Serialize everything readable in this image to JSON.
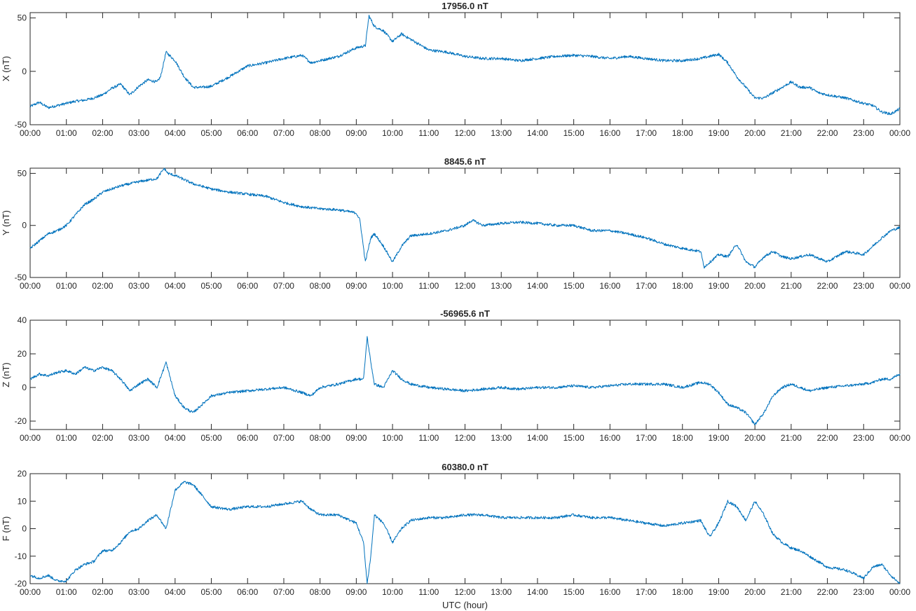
{
  "chart_data": [
    {
      "type": "line",
      "title": "17956.0 nT",
      "ylabel": "X (nT)",
      "xlabel": "",
      "x_ticks": [
        "00:00",
        "01:00",
        "02:00",
        "03:00",
        "04:00",
        "05:00",
        "06:00",
        "07:00",
        "08:00",
        "09:00",
        "10:00",
        "11:00",
        "12:00",
        "13:00",
        "14:00",
        "15:00",
        "16:00",
        "17:00",
        "18:00",
        "19:00",
        "20:00",
        "21:00",
        "22:00",
        "23:00",
        "00:00"
      ],
      "xlim": [
        0,
        24
      ],
      "ylim": [
        -50,
        55
      ],
      "y_ticks": [
        -50,
        0,
        50
      ],
      "grid": false,
      "line_color": "#0072bd",
      "series": [
        {
          "x": [
            0,
            0.25,
            0.5,
            0.75,
            1,
            1.25,
            1.5,
            1.75,
            2,
            2.25,
            2.5,
            2.75,
            3,
            3.25,
            3.5,
            3.6,
            3.75,
            4,
            4.25,
            4.5,
            4.75,
            5,
            5.5,
            6,
            6.5,
            7,
            7.5,
            7.75,
            8,
            8.5,
            8.75,
            9,
            9.25,
            9.35,
            9.5,
            9.75,
            10,
            10.25,
            10.5,
            11,
            11.5,
            12,
            12.5,
            13,
            13.5,
            14,
            14.5,
            15,
            15.5,
            16,
            16.5,
            17,
            17.5,
            18,
            18.5,
            18.75,
            19,
            19.25,
            19.5,
            19.75,
            20,
            20.25,
            20.5,
            20.75,
            21,
            21.25,
            21.5,
            21.75,
            22,
            22.5,
            23,
            23.25,
            23.5,
            23.75,
            24
          ],
          "values": [
            -33,
            -29,
            -34,
            -32,
            -30,
            -28,
            -27,
            -25,
            -22,
            -16,
            -12,
            -22,
            -14,
            -8,
            -10,
            -5,
            18,
            10,
            -5,
            -15,
            -15,
            -14,
            -5,
            5,
            8,
            12,
            15,
            8,
            10,
            14,
            18,
            22,
            24,
            52,
            42,
            38,
            28,
            35,
            30,
            20,
            18,
            14,
            12,
            12,
            10,
            12,
            14,
            15,
            14,
            12,
            14,
            12,
            10,
            10,
            12,
            14,
            16,
            8,
            -5,
            -15,
            -25,
            -25,
            -20,
            -15,
            -10,
            -15,
            -15,
            -20,
            -22,
            -25,
            -30,
            -32,
            -38,
            -40,
            -35
          ]
        }
      ]
    },
    {
      "type": "line",
      "title": "8845.6 nT",
      "ylabel": "Y (nT)",
      "xlabel": "",
      "x_ticks": [
        "00:00",
        "01:00",
        "02:00",
        "03:00",
        "04:00",
        "05:00",
        "06:00",
        "07:00",
        "08:00",
        "09:00",
        "10:00",
        "11:00",
        "12:00",
        "13:00",
        "14:00",
        "15:00",
        "16:00",
        "17:00",
        "18:00",
        "19:00",
        "20:00",
        "21:00",
        "22:00",
        "23:00",
        "00:00"
      ],
      "xlim": [
        0,
        24
      ],
      "ylim": [
        -50,
        55
      ],
      "y_ticks": [
        -50,
        0,
        50
      ],
      "grid": false,
      "line_color": "#0072bd",
      "series": [
        {
          "x": [
            0,
            0.25,
            0.5,
            0.75,
            1,
            1.25,
            1.5,
            1.75,
            2,
            2.5,
            3,
            3.5,
            3.7,
            3.8,
            4,
            4.5,
            5,
            5.5,
            6,
            6.5,
            7,
            7.5,
            8,
            8.5,
            9,
            9.1,
            9.25,
            9.4,
            9.5,
            9.75,
            10,
            10.25,
            10.5,
            11,
            11.5,
            12,
            12.2,
            12.5,
            13,
            13.5,
            14,
            14.5,
            15,
            15.5,
            16,
            16.5,
            17,
            17.5,
            18,
            18.5,
            18.6,
            19,
            19.25,
            19.5,
            19.75,
            20,
            20.25,
            20.5,
            20.75,
            21,
            21.5,
            22,
            22.5,
            23,
            23.25,
            23.5,
            23.75,
            24
          ],
          "values": [
            -22,
            -15,
            -8,
            -5,
            0,
            10,
            20,
            25,
            32,
            38,
            42,
            45,
            55,
            50,
            48,
            40,
            35,
            32,
            30,
            28,
            22,
            18,
            16,
            15,
            12,
            5,
            -35,
            -12,
            -8,
            -20,
            -35,
            -20,
            -10,
            -8,
            -5,
            0,
            5,
            0,
            2,
            3,
            2,
            0,
            0,
            -5,
            -5,
            -8,
            -12,
            -18,
            -22,
            -25,
            -40,
            -28,
            -30,
            -18,
            -35,
            -40,
            -30,
            -25,
            -30,
            -32,
            -28,
            -35,
            -25,
            -28,
            -20,
            -12,
            -5,
            -2
          ]
        }
      ]
    },
    {
      "type": "line",
      "title": "-56965.6 nT",
      "ylabel": "Z (nT)",
      "xlabel": "",
      "x_ticks": [
        "00:00",
        "01:00",
        "02:00",
        "03:00",
        "04:00",
        "05:00",
        "06:00",
        "07:00",
        "08:00",
        "09:00",
        "10:00",
        "11:00",
        "12:00",
        "13:00",
        "14:00",
        "15:00",
        "16:00",
        "17:00",
        "18:00",
        "19:00",
        "20:00",
        "21:00",
        "22:00",
        "23:00",
        "00:00"
      ],
      "xlim": [
        0,
        24
      ],
      "ylim": [
        -25,
        40
      ],
      "y_ticks": [
        -20,
        0,
        20,
        40
      ],
      "grid": false,
      "line_color": "#0072bd",
      "series": [
        {
          "x": [
            0,
            0.25,
            0.5,
            0.75,
            1,
            1.25,
            1.5,
            1.75,
            2,
            2.25,
            2.5,
            2.75,
            3,
            3.25,
            3.5,
            3.75,
            4,
            4.25,
            4.5,
            4.75,
            5,
            5.5,
            6,
            6.5,
            7,
            7.5,
            7.75,
            8,
            8.5,
            9,
            9.2,
            9.3,
            9.4,
            9.5,
            9.75,
            10,
            10.25,
            10.5,
            11,
            11.5,
            12,
            12.5,
            13,
            13.5,
            14,
            14.5,
            15,
            15.5,
            16,
            16.5,
            17,
            17.5,
            18,
            18.5,
            18.75,
            19,
            19.25,
            19.5,
            19.75,
            20,
            20.25,
            20.5,
            20.75,
            21,
            21.25,
            21.5,
            21.75,
            22,
            22.5,
            23,
            23.25,
            23.5,
            23.75,
            24
          ],
          "values": [
            5,
            8,
            7,
            9,
            10,
            8,
            12,
            10,
            12,
            10,
            5,
            -2,
            2,
            5,
            0,
            15,
            -5,
            -12,
            -15,
            -10,
            -5,
            -3,
            -2,
            -1,
            0,
            -3,
            -5,
            0,
            2,
            5,
            5,
            30,
            15,
            2,
            0,
            10,
            5,
            2,
            0,
            -1,
            -2,
            -1,
            0,
            -1,
            0,
            0,
            1,
            0,
            1,
            2,
            2,
            2,
            0,
            3,
            2,
            -3,
            -10,
            -12,
            -15,
            -22,
            -15,
            -5,
            0,
            2,
            0,
            -2,
            -1,
            0,
            1,
            2,
            3,
            5,
            5,
            8
          ]
        }
      ]
    },
    {
      "type": "line",
      "title": "60380.0 nT",
      "ylabel": "F (nT)",
      "xlabel": "UTC (hour)",
      "x_ticks": [
        "00:00",
        "01:00",
        "02:00",
        "03:00",
        "04:00",
        "05:00",
        "06:00",
        "07:00",
        "08:00",
        "09:00",
        "10:00",
        "11:00",
        "12:00",
        "13:00",
        "14:00",
        "15:00",
        "16:00",
        "17:00",
        "18:00",
        "19:00",
        "20:00",
        "21:00",
        "22:00",
        "23:00",
        "00:00"
      ],
      "xlim": [
        0,
        24
      ],
      "ylim": [
        -20,
        20
      ],
      "y_ticks": [
        -20,
        -10,
        0,
        10,
        20
      ],
      "grid": false,
      "line_color": "#0072bd",
      "series": [
        {
          "x": [
            0,
            0.25,
            0.5,
            0.75,
            1,
            1.25,
            1.5,
            1.75,
            2,
            2.25,
            2.5,
            2.75,
            3,
            3.25,
            3.5,
            3.75,
            4,
            4.25,
            4.5,
            4.75,
            5,
            5.5,
            6,
            6.5,
            7,
            7.5,
            7.75,
            8,
            8.5,
            9,
            9.2,
            9.3,
            9.4,
            9.5,
            9.75,
            10,
            10.25,
            10.5,
            11,
            11.5,
            12,
            12.5,
            13,
            13.5,
            14,
            14.5,
            15,
            15.5,
            16,
            16.5,
            17,
            17.5,
            18,
            18.5,
            18.75,
            19,
            19.25,
            19.5,
            19.75,
            20,
            20.25,
            20.5,
            20.75,
            21,
            21.25,
            21.5,
            21.75,
            22,
            22.5,
            23,
            23.25,
            23.5,
            23.75,
            24
          ],
          "values": [
            -17,
            -18,
            -17,
            -19,
            -19,
            -15,
            -13,
            -12,
            -8,
            -8,
            -5,
            -1,
            0,
            3,
            5,
            0,
            14,
            17,
            16,
            12,
            8,
            7,
            8,
            8,
            9,
            10,
            7,
            5,
            5,
            2,
            -5,
            -20,
            -10,
            5,
            2,
            -5,
            0,
            3,
            4,
            4,
            5,
            5,
            4,
            4,
            4,
            4,
            5,
            4,
            4,
            3,
            2,
            1,
            2,
            3,
            -3,
            2,
            10,
            8,
            3,
            10,
            5,
            -2,
            -5,
            -7,
            -8,
            -10,
            -12,
            -14,
            -15,
            -18,
            -14,
            -13,
            -17,
            -20
          ]
        }
      ]
    }
  ]
}
